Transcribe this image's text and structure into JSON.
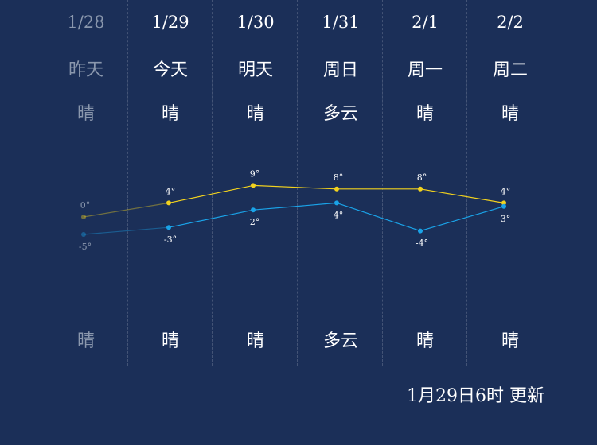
{
  "days": [
    {
      "date": "1/28",
      "name": "昨天",
      "weather_day": "晴",
      "weather_night": "晴"
    },
    {
      "date": "1/29",
      "name": "今天",
      "weather_day": "晴",
      "weather_night": "晴"
    },
    {
      "date": "1/30",
      "name": "明天",
      "weather_day": "晴",
      "weather_night": "晴"
    },
    {
      "date": "1/31",
      "name": "周日",
      "weather_day": "多云",
      "weather_night": "多云"
    },
    {
      "date": "2/1",
      "name": "周一",
      "weather_day": "晴",
      "weather_night": "晴"
    },
    {
      "date": "2/2",
      "name": "周二",
      "weather_day": "晴",
      "weather_night": "晴"
    }
  ],
  "footer": {
    "updated": "1月29日6时 更新"
  },
  "colors": {
    "background": "#1b2f58",
    "high": "#f2d21e",
    "low": "#1aa3e8",
    "past": "#8a97ad"
  },
  "chart_data": {
    "type": "line",
    "categories": [
      "1/28",
      "1/29",
      "1/30",
      "1/31",
      "2/1",
      "2/2"
    ],
    "series": [
      {
        "values": [
          0,
          4,
          9,
          8,
          8,
          4
        ]
      },
      {
        "values": [
          -5,
          -3,
          2,
          4,
          -4,
          3
        ]
      }
    ],
    "labels_high": [
      "0°",
      "4°",
      "9°",
      "8°",
      "8°",
      "4°"
    ],
    "labels_low": [
      "-5°",
      "-3°",
      "2°",
      "4°",
      "-4°",
      "3°"
    ]
  }
}
